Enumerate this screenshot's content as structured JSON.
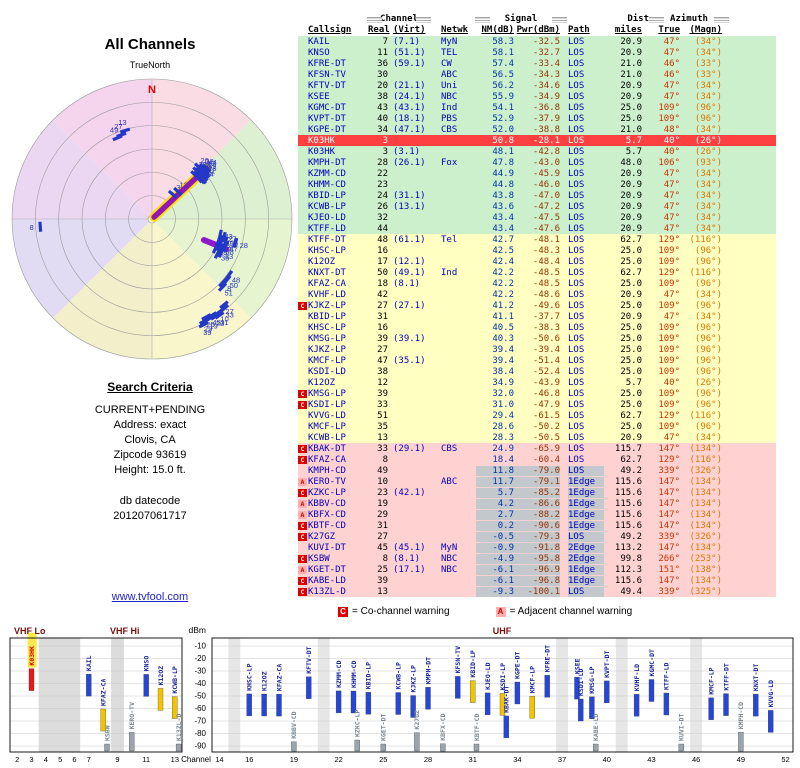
{
  "title": "All Channels",
  "link": "www.tvfool.com",
  "radar": {
    "north_label": "TrueNorth",
    "n": "N",
    "sectors": [
      {
        "a1": 315,
        "a2": 360,
        "c": "#f5d4ee"
      },
      {
        "a1": 0,
        "a2": 45,
        "c": "#fadce4"
      },
      {
        "a1": 45,
        "a2": 90,
        "c": "#def0d2"
      },
      {
        "a1": 90,
        "a2": 135,
        "c": "#e6f5cf"
      },
      {
        "a1": 135,
        "a2": 180,
        "c": "#f8f6ca"
      },
      {
        "a1": 180,
        "a2": 225,
        "c": "#f4efcb"
      },
      {
        "a1": 225,
        "a2": 270,
        "c": "#e2dbf4"
      },
      {
        "a1": 270,
        "a2": 315,
        "c": "#ecd7f3"
      }
    ],
    "rings": [
      0.167,
      0.333,
      0.5,
      0.667,
      0.833,
      1
    ],
    "beams": [
      {
        "a": 47,
        "r1": 0.02,
        "r2": 0.53,
        "w": 5.5
      },
      {
        "a": 112,
        "r1": 0.4,
        "r2": 0.57,
        "w": 6
      }
    ],
    "markers": [
      [
        3,
        40,
        0.23
      ],
      [
        12,
        43,
        0.27
      ],
      [
        7,
        44,
        0.44
      ],
      [
        20,
        43,
        0.47
      ],
      [
        26,
        42,
        0.5
      ],
      [
        32,
        45,
        0.52
      ],
      [
        11,
        46,
        0.46
      ],
      [
        38,
        45,
        0.49
      ],
      [
        44,
        47,
        0.53
      ],
      [
        22,
        47,
        0.52
      ],
      [
        36,
        48,
        0.47
      ],
      [
        34,
        49,
        0.44
      ],
      [
        42,
        49,
        0.51
      ],
      [
        23,
        50,
        0.5
      ],
      [
        30,
        51,
        0.45
      ],
      [
        31,
        51,
        0.48
      ],
      [
        24,
        52,
        0.46
      ],
      [
        28,
        106,
        0.62
      ],
      [
        43,
        103,
        0.5
      ],
      [
        27,
        104,
        0.53
      ],
      [
        40,
        107,
        0.52
      ],
      [
        39,
        107,
        0.55
      ],
      [
        16,
        110,
        0.5
      ],
      [
        47,
        110,
        0.56
      ],
      [
        17,
        112,
        0.52
      ],
      [
        38,
        113,
        0.54
      ],
      [
        18,
        115,
        0.5
      ],
      [
        33,
        116,
        0.55
      ],
      [
        35,
        118,
        0.53
      ],
      [
        48,
        126,
        0.68
      ],
      [
        50,
        129,
        0.69
      ],
      [
        8,
        132,
        0.68
      ],
      [
        51,
        134,
        0.7
      ],
      [
        27,
        140,
        0.8
      ],
      [
        33,
        141,
        0.82
      ],
      [
        10,
        144,
        0.82
      ],
      [
        31,
        145,
        0.84
      ],
      [
        23,
        147,
        0.83
      ],
      [
        45,
        148,
        0.81
      ],
      [
        19,
        150,
        0.82
      ],
      [
        25,
        151,
        0.8
      ],
      [
        29,
        153,
        0.82
      ],
      [
        39,
        154,
        0.84
      ],
      [
        8,
        266,
        0.8
      ],
      [
        49,
        337,
        0.63
      ],
      [
        27,
        340,
        0.64
      ],
      [
        13,
        343,
        0.66
      ]
    ]
  },
  "criteria": {
    "heading": "Search Criteria",
    "lines": [
      "CURRENT+PENDING",
      "Address: exact",
      "Clovis, CA",
      "Zipcode 93619",
      "Height: 15.0 ft."
    ],
    "db_label": "db datecode",
    "db_value": "201207061717"
  },
  "table": {
    "group_headers": {
      "channel": "Channel",
      "signal": "Signal",
      "dist": "Dist",
      "azimuth": "Azimuth"
    },
    "columns": {
      "callsign": "Callsign",
      "real": "Real",
      "virt": "(Virt)",
      "netwk": "Netwk",
      "nm": "NM(dB)",
      "pwr": "Pwr(dBm)",
      "path": "Path",
      "miles": "miles",
      "true": "True",
      "magn": "(Magn)"
    },
    "stations": [
      {
        "f": "",
        "cs": "KAIL",
        "re": "7",
        "vi": "(7.1)",
        "nw": "MyN",
        "nm": "58.3",
        "pw": "-32.5",
        "pa": "LOS",
        "mi": "20.9",
        "tr": "47°",
        "mg": "(34°)",
        "b": "g"
      },
      {
        "f": "",
        "cs": "KNSO",
        "re": "11",
        "vi": "(51.1)",
        "nw": "TEL",
        "nm": "58.1",
        "pw": "-32.7",
        "pa": "LOS",
        "mi": "20.9",
        "tr": "47°",
        "mg": "(34°)",
        "b": "g"
      },
      {
        "f": "",
        "cs": "KFRE-DT",
        "re": "36",
        "vi": "(59.1)",
        "nw": "CW",
        "nm": "57.4",
        "pw": "-33.4",
        "pa": "LOS",
        "mi": "21.0",
        "tr": "46°",
        "mg": "(33°)",
        "b": "g"
      },
      {
        "f": "",
        "cs": "KFSN-TV",
        "re": "30",
        "vi": "",
        "nw": "ABC",
        "nm": "56.5",
        "pw": "-34.3",
        "pa": "LOS",
        "mi": "21.0",
        "tr": "46°",
        "mg": "(33°)",
        "b": "g"
      },
      {
        "f": "",
        "cs": "KFTV-DT",
        "re": "20",
        "vi": "(21.1)",
        "nw": "Uni",
        "nm": "56.2",
        "pw": "-34.6",
        "pa": "LOS",
        "mi": "20.9",
        "tr": "47°",
        "mg": "(34°)",
        "b": "g"
      },
      {
        "f": "",
        "cs": "KSEE",
        "re": "38",
        "vi": "(24.1)",
        "nw": "NBC",
        "nm": "55.9",
        "pw": "-34.9",
        "pa": "LOS",
        "mi": "20.9",
        "tr": "47°",
        "mg": "(34°)",
        "b": "g"
      },
      {
        "f": "",
        "cs": "KGMC-DT",
        "re": "43",
        "vi": "(43.1)",
        "nw": "Ind",
        "nm": "54.1",
        "pw": "-36.8",
        "pa": "LOS",
        "mi": "25.0",
        "tr": "109°",
        "mg": "(96°)",
        "b": "g"
      },
      {
        "f": "",
        "cs": "KVPT-DT",
        "re": "40",
        "vi": "(18.1)",
        "nw": "PBS",
        "nm": "52.9",
        "pw": "-37.9",
        "pa": "LOS",
        "mi": "25.0",
        "tr": "109°",
        "mg": "(96°)",
        "b": "g"
      },
      {
        "f": "",
        "cs": "KGPE-DT",
        "re": "34",
        "vi": "(47.1)",
        "nw": "CBS",
        "nm": "52.0",
        "pw": "-38.8",
        "pa": "LOS",
        "mi": "21.0",
        "tr": "48°",
        "mg": "(34°)",
        "b": "g"
      },
      {
        "f": "",
        "cs": "K03HK",
        "re": "3",
        "vi": "",
        "nw": "",
        "nm": "50.8",
        "pw": "-28.1",
        "pa": "LOS",
        "mi": "5.7",
        "tr": "40°",
        "mg": "(26°)",
        "b": "g",
        "an": true,
        "hl": true
      },
      {
        "f": "",
        "cs": "K03HK",
        "re": "3",
        "vi": "(3.1)",
        "nw": "",
        "nm": "48.1",
        "pw": "-42.8",
        "pa": "LOS",
        "mi": "5.7",
        "tr": "40°",
        "mg": "(26°)",
        "b": "g"
      },
      {
        "f": "",
        "cs": "KMPH-DT",
        "re": "28",
        "vi": "(26.1)",
        "nw": "Fox",
        "nm": "47.8",
        "pw": "-43.0",
        "pa": "LOS",
        "mi": "48.0",
        "tr": "106°",
        "mg": "(93°)",
        "b": "g"
      },
      {
        "f": "",
        "cs": "KZMM-CD",
        "re": "22",
        "vi": "",
        "nw": "",
        "nm": "44.9",
        "pw": "-45.9",
        "pa": "LOS",
        "mi": "20.9",
        "tr": "47°",
        "mg": "(34°)",
        "b": "g"
      },
      {
        "f": "",
        "cs": "KHMM-CD",
        "re": "23",
        "vi": "",
        "nw": "",
        "nm": "44.8",
        "pw": "-46.0",
        "pa": "LOS",
        "mi": "20.9",
        "tr": "47°",
        "mg": "(34°)",
        "b": "g"
      },
      {
        "f": "",
        "cs": "KBID-LP",
        "re": "24",
        "vi": "(31.1)",
        "nw": "",
        "nm": "43.8",
        "pw": "-47.0",
        "pa": "LOS",
        "mi": "20.9",
        "tr": "47°",
        "mg": "(34°)",
        "b": "g"
      },
      {
        "f": "",
        "cs": "KCWB-LP",
        "re": "26",
        "vi": "(13.1)",
        "nw": "",
        "nm": "43.6",
        "pw": "-47.2",
        "pa": "LOS",
        "mi": "20.9",
        "tr": "47°",
        "mg": "(34°)",
        "b": "g"
      },
      {
        "f": "",
        "cs": "KJEO-LD",
        "re": "32",
        "vi": "",
        "nw": "",
        "nm": "43.4",
        "pw": "-47.5",
        "pa": "LOS",
        "mi": "20.9",
        "tr": "47°",
        "mg": "(34°)",
        "b": "g"
      },
      {
        "f": "",
        "cs": "KTFF-LD",
        "re": "44",
        "vi": "",
        "nw": "",
        "nm": "43.4",
        "pw": "-47.6",
        "pa": "LOS",
        "mi": "20.9",
        "tr": "47°",
        "mg": "(34°)",
        "b": "g"
      },
      {
        "f": "",
        "cs": "KTFF-DT",
        "re": "48",
        "vi": "(61.1)",
        "nw": "Tel",
        "nm": "42.7",
        "pw": "-48.1",
        "pa": "LOS",
        "mi": "62.7",
        "tr": "129°",
        "mg": "(116°)",
        "b": "y"
      },
      {
        "f": "",
        "cs": "KHSC-LP",
        "re": "16",
        "vi": "",
        "nw": "",
        "nm": "42.5",
        "pw": "-48.3",
        "pa": "LOS",
        "mi": "25.0",
        "tr": "109°",
        "mg": "(96°)",
        "b": "y"
      },
      {
        "f": "",
        "cs": "K12OZ",
        "re": "17",
        "vi": "(12.1)",
        "nw": "",
        "nm": "42.4",
        "pw": "-48.4",
        "pa": "LOS",
        "mi": "25.0",
        "tr": "109°",
        "mg": "(96°)",
        "b": "y"
      },
      {
        "f": "",
        "cs": "KNXT-DT",
        "re": "50",
        "vi": "(49.1)",
        "nw": "Ind",
        "nm": "42.2",
        "pw": "-48.5",
        "pa": "LOS",
        "mi": "62.7",
        "tr": "129°",
        "mg": "(116°)",
        "b": "y"
      },
      {
        "f": "",
        "cs": "KFAZ-CA",
        "re": "18",
        "vi": "(8.1)",
        "nw": "",
        "nm": "42.2",
        "pw": "-48.5",
        "pa": "LOS",
        "mi": "25.0",
        "tr": "109°",
        "mg": "(96°)",
        "b": "y"
      },
      {
        "f": "",
        "cs": "KVHF-LD",
        "re": "42",
        "vi": "",
        "nw": "",
        "nm": "42.2",
        "pw": "-48.6",
        "pa": "LOS",
        "mi": "20.9",
        "tr": "47°",
        "mg": "(34°)",
        "b": "y"
      },
      {
        "f": "C",
        "cs": "KJKZ-LP",
        "re": "27",
        "vi": "(27.1)",
        "nw": "",
        "nm": "41.2",
        "pw": "-49.6",
        "pa": "LOS",
        "mi": "25.0",
        "tr": "109°",
        "mg": "(96°)",
        "b": "y"
      },
      {
        "f": "",
        "cs": "KBID-LP",
        "re": "31",
        "vi": "",
        "nw": "",
        "nm": "41.1",
        "pw": "-37.7",
        "pa": "LOS",
        "mi": "20.9",
        "tr": "47°",
        "mg": "(34°)",
        "b": "y",
        "an": true
      },
      {
        "f": "",
        "cs": "KHSC-LP",
        "re": "16",
        "vi": "",
        "nw": "",
        "nm": "40.5",
        "pw": "-38.3",
        "pa": "LOS",
        "mi": "25.0",
        "tr": "109°",
        "mg": "(96°)",
        "b": "y",
        "an": true
      },
      {
        "f": "",
        "cs": "KMSG-LP",
        "re": "39",
        "vi": "(39.1)",
        "nw": "",
        "nm": "40.3",
        "pw": "-50.6",
        "pa": "LOS",
        "mi": "25.0",
        "tr": "109°",
        "mg": "(96°)",
        "b": "y"
      },
      {
        "f": "",
        "cs": "KJKZ-LP",
        "re": "27",
        "vi": "",
        "nw": "",
        "nm": "39.4",
        "pw": "-39.4",
        "pa": "LOS",
        "mi": "25.0",
        "tr": "109°",
        "mg": "(96°)",
        "b": "y",
        "an": true
      },
      {
        "f": "",
        "cs": "KMCF-LP",
        "re": "47",
        "vi": "(35.1)",
        "nw": "",
        "nm": "39.4",
        "pw": "-51.4",
        "pa": "LOS",
        "mi": "25.0",
        "tr": "109°",
        "mg": "(96°)",
        "b": "y"
      },
      {
        "f": "",
        "cs": "KSDI-LD",
        "re": "38",
        "vi": "",
        "nw": "",
        "nm": "38.4",
        "pw": "-52.4",
        "pa": "LOS",
        "mi": "25.0",
        "tr": "109°",
        "mg": "(96°)",
        "b": "y"
      },
      {
        "f": "",
        "cs": "K12OZ",
        "re": "12",
        "vi": "",
        "nw": "",
        "nm": "34.9",
        "pw": "-43.9",
        "pa": "LOS",
        "mi": "5.7",
        "tr": "40°",
        "mg": "(26°)",
        "b": "y",
        "an": true
      },
      {
        "f": "C",
        "cs": "KMSG-LP",
        "re": "39",
        "vi": "",
        "nw": "",
        "nm": "32.0",
        "pw": "-46.8",
        "pa": "LOS",
        "mi": "25.0",
        "tr": "109°",
        "mg": "(96°)",
        "b": "y",
        "an": true
      },
      {
        "f": "C",
        "cs": "KSDI-LP",
        "re": "33",
        "vi": "",
        "nw": "",
        "nm": "31.0",
        "pw": "-47.9",
        "pa": "LOS",
        "mi": "25.0",
        "tr": "109°",
        "mg": "(96°)",
        "b": "y",
        "an": true
      },
      {
        "f": "",
        "cs": "KVVG-LD",
        "re": "51",
        "vi": "",
        "nw": "",
        "nm": "29.4",
        "pw": "-61.5",
        "pa": "LOS",
        "mi": "62.7",
        "tr": "129°",
        "mg": "(116°)",
        "b": "y"
      },
      {
        "f": "",
        "cs": "KMCF-LP",
        "re": "35",
        "vi": "",
        "nw": "",
        "nm": "28.6",
        "pw": "-50.2",
        "pa": "LOS",
        "mi": "25.0",
        "tr": "109°",
        "mg": "(96°)",
        "b": "y",
        "an": true
      },
      {
        "f": "",
        "cs": "KCWB-LP",
        "re": "13",
        "vi": "",
        "nw": "",
        "nm": "28.3",
        "pw": "-50.5",
        "pa": "LOS",
        "mi": "20.9",
        "tr": "47°",
        "mg": "(34°)",
        "b": "y",
        "an": true
      },
      {
        "f": "C",
        "cs": "KBAK-DT",
        "re": "33",
        "vi": "(29.1)",
        "nw": "CBS",
        "nm": "24.9",
        "pw": "-65.9",
        "pa": "LOS",
        "mi": "115.7",
        "tr": "147°",
        "mg": "(134°)",
        "b": "p"
      },
      {
        "f": "C",
        "cs": "KFAZ-CA",
        "re": "8",
        "vi": "",
        "nw": "",
        "nm": "18.4",
        "pw": "-60.4",
        "pa": "LOS",
        "mi": "62.7",
        "tr": "129°",
        "mg": "(116°)",
        "b": "p",
        "an": true
      },
      {
        "f": "",
        "cs": "KMPH-CD",
        "re": "49",
        "vi": "",
        "nw": "",
        "nm": "11.8",
        "pw": "-79.0",
        "pa": "LOS",
        "mi": "49.2",
        "tr": "339°",
        "mg": "(326°)",
        "b": "p",
        "gr": true
      },
      {
        "f": "A",
        "cs": "KERO-TV",
        "re": "10",
        "vi": "",
        "nw": "ABC",
        "nm": "11.7",
        "pw": "-79.1",
        "pa": "1Edge",
        "mi": "115.6",
        "tr": "147°",
        "mg": "(134°)",
        "b": "p",
        "gr": true
      },
      {
        "f": "C",
        "cs": "KZKC-LP",
        "re": "23",
        "vi": "(42.1)",
        "nw": "",
        "nm": "5.7",
        "pw": "-85.2",
        "pa": "1Edge",
        "mi": "115.6",
        "tr": "147°",
        "mg": "(134°)",
        "b": "p",
        "gr": true
      },
      {
        "f": "A",
        "cs": "KBBV-CD",
        "re": "19",
        "vi": "",
        "nw": "",
        "nm": "4.2",
        "pw": "-86.6",
        "pa": "1Edge",
        "mi": "115.6",
        "tr": "147°",
        "mg": "(134°)",
        "b": "p",
        "gr": true
      },
      {
        "f": "A",
        "cs": "KBFX-CD",
        "re": "29",
        "vi": "",
        "nw": "",
        "nm": "2.7",
        "pw": "-88.2",
        "pa": "1Edge",
        "mi": "115.6",
        "tr": "147°",
        "mg": "(134°)",
        "b": "p",
        "gr": true
      },
      {
        "f": "C",
        "cs": "KBTF-CD",
        "re": "31",
        "vi": "",
        "nw": "",
        "nm": "0.2",
        "pw": "-90.6",
        "pa": "1Edge",
        "mi": "115.6",
        "tr": "147°",
        "mg": "(134°)",
        "b": "p",
        "gr": true
      },
      {
        "f": "C",
        "cs": "K27GZ",
        "re": "27",
        "vi": "",
        "nw": "",
        "nm": "-0.5",
        "pw": "-79.3",
        "pa": "LOS",
        "mi": "49.2",
        "tr": "339°",
        "mg": "(326°)",
        "b": "p",
        "an": true,
        "gr": true
      },
      {
        "f": "",
        "cs": "KUVI-DT",
        "re": "45",
        "vi": "(45.1)",
        "nw": "MyN",
        "nm": "-0.9",
        "pw": "-91.8",
        "pa": "2Edge",
        "mi": "113.2",
        "tr": "147°",
        "mg": "(134°)",
        "b": "p",
        "gr": true
      },
      {
        "f": "C",
        "cs": "KSBW",
        "re": "8",
        "vi": "(8.1)",
        "nw": "NBC",
        "nm": "-4.9",
        "pw": "-95.8",
        "pa": "2Edge",
        "mi": "99.8",
        "tr": "266°",
        "mg": "(253°)",
        "b": "p",
        "gr": true
      },
      {
        "f": "A",
        "cs": "KGET-DT",
        "re": "25",
        "vi": "(17.1)",
        "nw": "NBC",
        "nm": "-6.1",
        "pw": "-96.9",
        "pa": "1Edge",
        "mi": "112.3",
        "tr": "151°",
        "mg": "(138°)",
        "b": "p",
        "gr": true
      },
      {
        "f": "C",
        "cs": "KABE-LD",
        "re": "39",
        "vi": "",
        "nw": "",
        "nm": "-6.1",
        "pw": "-96.8",
        "pa": "1Edge",
        "mi": "115.6",
        "tr": "147°",
        "mg": "(134°)",
        "b": "p",
        "gr": true
      },
      {
        "f": "C",
        "cs": "K13ZL-D",
        "re": "13",
        "vi": "",
        "nw": "",
        "nm": "-9.3",
        "pw": "-100.1",
        "pa": "LOS",
        "mi": "49.4",
        "tr": "339°",
        "mg": "(325°)",
        "b": "p",
        "gr": true
      }
    ]
  },
  "legend": {
    "c": "C",
    "c_text": "= Co-channel warning",
    "a": "A",
    "a_text": "= Adjacent channel warning"
  },
  "band_chart": {
    "vhf_lo": "VHF Lo",
    "vhf_hi": "VHF Hi",
    "uhf": "UHF",
    "dbm": "dBm",
    "channel": "Channel",
    "dbm_ticks": [
      -10,
      -20,
      -30,
      -40,
      -50,
      -60,
      -70,
      -80,
      -90
    ],
    "vhf_ticks": [
      2,
      3,
      4,
      5,
      6,
      7,
      9,
      11,
      13
    ],
    "uhf_ticks": [
      14,
      16,
      19,
      22,
      25,
      28,
      31,
      34,
      37,
      40,
      43,
      46,
      49,
      52
    ],
    "gray_vhf": [
      [
        3.5,
        6.4
      ],
      [
        8.55,
        9.45
      ]
    ],
    "gray_uhf": [
      [
        14.6,
        15.4
      ],
      [
        20.6,
        21.4
      ],
      [
        36.6,
        37.4
      ],
      [
        40.6,
        41.4
      ],
      [
        45.6,
        46.4
      ]
    ]
  },
  "colors": {
    "digital_bar": "#2646d8",
    "analog_bar": "#f2c400",
    "weak_bar": "#9aa4ac",
    "highlight_bar": "#e81818",
    "band_green": "#ccf0cc",
    "band_yellow": "#ffffc2",
    "band_pink": "#ffd2d2",
    "beam": "#8800cc"
  }
}
